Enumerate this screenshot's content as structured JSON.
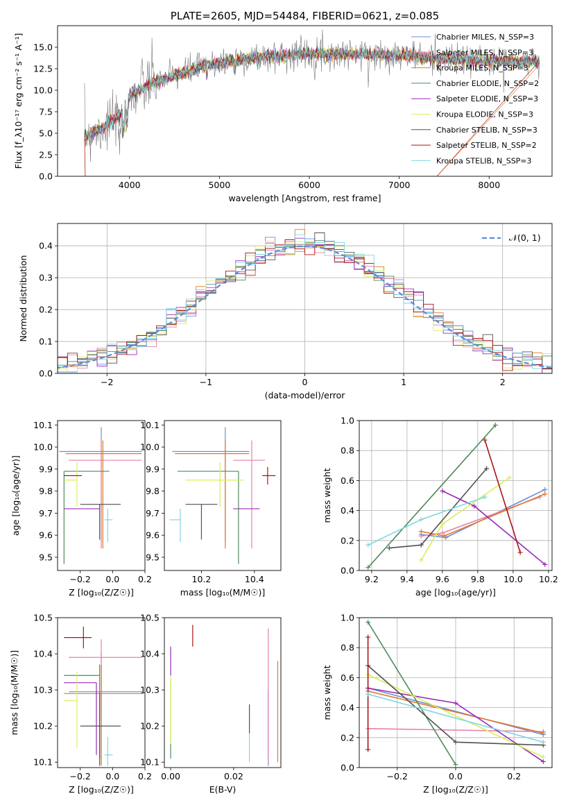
{
  "colors": {
    "Chabrier MILES": "#6a8fd8",
    "Salpeter MILES": "#e87fa8",
    "Kroupa MILES": "#e07a2a",
    "Chabrier ELODIE": "#4e8a5a",
    "Salpeter ELODIE": "#9a2ab8",
    "Kroupa ELODIE": "#d8ef5a",
    "Chabrier STELIB": "#505050",
    "Salpeter STELIB": "#a81414",
    "Kroupa STELIB": "#7fd6e6",
    "normal": "#5b8ad9",
    "data": "#777777"
  },
  "chart_data": [
    {
      "id": "spectrum",
      "type": "line",
      "title": "PLATE=2605, MJD=54484, FIBERID=0621, z=0.085",
      "xlabel": "wavelength [Angstrom, rest frame]",
      "ylabel": "Flux [f_λ10⁻¹⁷ erg cm⁻² s⁻¹ A⁻¹]",
      "xlim": [
        3200,
        8700
      ],
      "ylim": [
        0,
        17.5
      ],
      "xticks": [
        4000,
        5000,
        6000,
        7000,
        8000
      ],
      "yticks": [
        0.0,
        2.5,
        5.0,
        7.5,
        10.0,
        12.5,
        15.0
      ],
      "continuum": [
        [
          3500,
          4.6
        ],
        [
          3700,
          5.6
        ],
        [
          3900,
          7.2
        ],
        [
          4000,
          9.2
        ],
        [
          4200,
          10.6
        ],
        [
          4500,
          11.7
        ],
        [
          4800,
          12.7
        ],
        [
          5200,
          13.5
        ],
        [
          5600,
          14.0
        ],
        [
          6000,
          14.3
        ],
        [
          6500,
          14.2
        ],
        [
          7000,
          14.1
        ],
        [
          7500,
          13.6
        ],
        [
          8000,
          13.4
        ],
        [
          8500,
          13.3
        ]
      ],
      "legend": [
        "Chabrier MILES, N_SSP=3",
        "Salpeter MILES, N_SSP=3",
        "Kroupa MILES, N_SSP=3",
        "Chabrier ELODIE, N_SSP=2",
        "Salpeter ELODIE, N_SSP=3",
        "Kroupa ELODIE, N_SSP=3",
        "Chabrier STELIB, N_SSP=3",
        "Salpeter STELIB, N_SSP=2",
        "Kroupa STELIB, N_SSP=3"
      ],
      "legend_loc": "right"
    },
    {
      "id": "residuals",
      "type": "histogram",
      "xlabel": "(data-model)/error",
      "ylabel": "Normed distribution",
      "xlim": [
        -2.5,
        2.5
      ],
      "ylim": [
        0,
        0.47
      ],
      "xticks": [
        -2,
        -1,
        0,
        1,
        2
      ],
      "yticks": [
        0.0,
        0.1,
        0.2,
        0.3,
        0.4
      ],
      "bin_width": 0.1,
      "grid": true,
      "legend": [
        "𝒩(0, 1)"
      ],
      "legend_loc": "top-right"
    },
    {
      "id": "age_vs_Z",
      "type": "errorbar",
      "xlabel": "Z [log₁₀(Z/Z☉)]",
      "ylabel": "age  [log₁₀(age/yr)]",
      "xlim": [
        -0.34,
        0.2
      ],
      "ylim": [
        9.44,
        10.12
      ],
      "xticks": [
        -0.2,
        0.0,
        0.2
      ],
      "yticks": [
        9.5,
        9.6,
        9.7,
        9.8,
        9.9,
        10.0,
        10.1
      ],
      "points": [
        {
          "model": "Chabrier MILES",
          "x": -0.07,
          "y": 9.98,
          "xerr": [
            0.26,
            0.25
          ],
          "yerr": [
            0.41,
            0.11
          ]
        },
        {
          "model": "Salpeter MILES",
          "x": -0.07,
          "y": 9.94,
          "xerr": [
            0.2,
            0.25
          ],
          "yerr": [
            0.4,
            0.09
          ]
        },
        {
          "model": "Kroupa MILES",
          "x": -0.06,
          "y": 9.97,
          "xerr": [
            0.23,
            0.24
          ],
          "yerr": [
            0.43,
            0.06
          ]
        },
        {
          "model": "Chabrier ELODIE",
          "x": -0.3,
          "y": 9.89,
          "xerr": [
            0.0,
            0.28
          ],
          "yerr": [
            0.42,
            0.0
          ]
        },
        {
          "model": "Salpeter ELODIE",
          "x": -0.1,
          "y": 9.72,
          "xerr": [
            0.2,
            0.02
          ],
          "yerr": [
            0.0,
            0.0
          ]
        },
        {
          "model": "Kroupa ELODIE",
          "x": -0.22,
          "y": 9.85,
          "xerr": [
            0.08,
            0.0
          ],
          "yerr": [
            0.12,
            0.08
          ]
        },
        {
          "model": "Chabrier STELIB",
          "x": -0.08,
          "y": 9.74,
          "xerr": [
            0.12,
            0.13
          ],
          "yerr": [
            0.16,
            0.0
          ]
        },
        {
          "model": "Salpeter STELIB",
          "x": -0.22,
          "y": 9.87,
          "xerr": [
            0.08,
            0.03
          ],
          "yerr": [
            0.0,
            0.0
          ]
        },
        {
          "model": "Kroupa STELIB",
          "x": -0.03,
          "y": 9.67,
          "xerr": [
            0.02,
            0.03
          ],
          "yerr": [
            0.1,
            0.05
          ]
        }
      ]
    },
    {
      "id": "age_vs_mass",
      "type": "errorbar",
      "xlabel": "mass [log₁₀(M/M☉)]",
      "ylabel": "",
      "xlim": [
        10.06,
        10.5
      ],
      "ylim": [
        9.44,
        10.12
      ],
      "xticks": [
        10.2,
        10.4
      ],
      "yticks": [
        9.5,
        9.6,
        9.7,
        9.8,
        9.9,
        10.0,
        10.1
      ],
      "points": [
        {
          "model": "Chabrier MILES",
          "x": 10.29,
          "y": 9.98,
          "xerr": [
            0.2,
            0.09
          ],
          "yerr": [
            0.41,
            0.11
          ]
        },
        {
          "model": "Salpeter MILES",
          "x": 10.39,
          "y": 9.94,
          "xerr": [
            0.07,
            0.05
          ],
          "yerr": [
            0.4,
            0.09
          ]
        },
        {
          "model": "Kroupa MILES",
          "x": 10.29,
          "y": 9.97,
          "xerr": [
            0.19,
            0.09
          ],
          "yerr": [
            0.43,
            0.06
          ]
        },
        {
          "model": "Chabrier ELODIE",
          "x": 10.34,
          "y": 9.89,
          "xerr": [
            0.23,
            0.0
          ],
          "yerr": [
            0.42,
            0.0
          ]
        },
        {
          "model": "Salpeter ELODIE",
          "x": 10.32,
          "y": 9.72,
          "xerr": [
            0.0,
            0.1
          ],
          "yerr": [
            0.0,
            0.0
          ]
        },
        {
          "model": "Kroupa ELODIE",
          "x": 10.27,
          "y": 9.85,
          "xerr": [
            0.13,
            0.09
          ],
          "yerr": [
            0.12,
            0.08
          ]
        },
        {
          "model": "Chabrier STELIB",
          "x": 10.2,
          "y": 9.74,
          "xerr": [
            0.06,
            0.06
          ],
          "yerr": [
            0.16,
            0.0
          ]
        },
        {
          "model": "Salpeter STELIB",
          "x": 10.45,
          "y": 9.87,
          "xerr": [
            0.02,
            0.03
          ],
          "yerr": [
            0.04,
            0.04
          ]
        },
        {
          "model": "Kroupa STELIB",
          "x": 10.12,
          "y": 9.67,
          "xerr": [
            0.04,
            0.0
          ],
          "yerr": [
            0.1,
            0.05
          ]
        }
      ]
    },
    {
      "id": "weight_vs_age",
      "type": "line",
      "xlabel": "age  [log₁₀(age/yr)]",
      "ylabel": "mass weight",
      "xlim": [
        9.13,
        10.22
      ],
      "ylim": [
        0,
        1
      ],
      "xticks": [
        9.2,
        9.4,
        9.6,
        9.8,
        10.0,
        10.2
      ],
      "yticks": [
        0.0,
        0.2,
        0.4,
        0.6,
        0.8,
        1.0
      ],
      "grid": true,
      "series": [
        {
          "model": "Chabrier MILES",
          "x": [
            9.48,
            9.62,
            10.18
          ],
          "y": [
            0.24,
            0.22,
            0.54
          ]
        },
        {
          "model": "Salpeter MILES",
          "x": [
            9.48,
            9.6,
            10.15
          ],
          "y": [
            0.23,
            0.25,
            0.49
          ]
        },
        {
          "model": "Kroupa MILES",
          "x": [
            9.48,
            9.61,
            10.18
          ],
          "y": [
            0.26,
            0.23,
            0.51
          ]
        },
        {
          "model": "Chabrier ELODIE",
          "x": [
            9.18,
            9.9
          ],
          "y": [
            0.02,
            0.97
          ]
        },
        {
          "model": "Salpeter ELODIE",
          "x": [
            9.6,
            9.78,
            10.18
          ],
          "y": [
            0.53,
            0.43,
            0.04
          ]
        },
        {
          "model": "Kroupa ELODIE",
          "x": [
            9.48,
            9.6,
            9.98
          ],
          "y": [
            0.07,
            0.31,
            0.62
          ]
        },
        {
          "model": "Chabrier STELIB",
          "x": [
            9.3,
            9.48,
            9.85
          ],
          "y": [
            0.15,
            0.17,
            0.68
          ]
        },
        {
          "model": "Salpeter STELIB",
          "x": [
            9.84,
            10.04
          ],
          "y": [
            0.87,
            0.12
          ]
        },
        {
          "model": "Kroupa STELIB",
          "x": [
            9.18,
            9.48,
            9.84
          ],
          "y": [
            0.17,
            0.34,
            0.49
          ]
        }
      ]
    },
    {
      "id": "mass_vs_Z",
      "type": "errorbar",
      "xlabel": "Z [log₁₀(Z/Z☉)]",
      "ylabel": "mass [log₁₀(M/M☉)]",
      "xlim": [
        -0.34,
        0.2
      ],
      "ylim": [
        10.085,
        10.5
      ],
      "xticks": [
        -0.2,
        0.0,
        0.2
      ],
      "yticks": [
        10.1,
        10.2,
        10.3,
        10.4,
        10.5
      ],
      "points": [
        {
          "model": "Chabrier MILES",
          "x": -0.07,
          "y": 10.295,
          "xerr": [
            0.2,
            0.25
          ],
          "yerr": [
            0.2,
            0.11
          ]
        },
        {
          "model": "Salpeter MILES",
          "x": -0.07,
          "y": 10.39,
          "xerr": [
            0.2,
            0.25
          ],
          "yerr": [
            0.17,
            0.05
          ]
        },
        {
          "model": "Kroupa MILES",
          "x": -0.07,
          "y": 10.29,
          "xerr": [
            0.23,
            0.26
          ],
          "yerr": [
            0.2,
            0.08
          ]
        },
        {
          "model": "Chabrier ELODIE",
          "x": -0.08,
          "y": 10.34,
          "xerr": [
            0.22,
            0.0
          ],
          "yerr": [
            0.23,
            0.03
          ]
        },
        {
          "model": "Salpeter ELODIE",
          "x": -0.1,
          "y": 10.32,
          "xerr": [
            0.2,
            0.0
          ],
          "yerr": [
            0.2,
            0.0
          ]
        },
        {
          "model": "Kroupa ELODIE",
          "x": -0.22,
          "y": 10.27,
          "xerr": [
            0.08,
            0.0
          ],
          "yerr": [
            0.13,
            0.08
          ]
        },
        {
          "model": "Chabrier STELIB",
          "x": -0.08,
          "y": 10.2,
          "xerr": [
            0.12,
            0.13
          ],
          "yerr": [
            0.11,
            0.09
          ]
        },
        {
          "model": "Salpeter STELIB",
          "x": -0.18,
          "y": 10.445,
          "xerr": [
            0.12,
            0.05
          ],
          "yerr": [
            0.03,
            0.03
          ]
        },
        {
          "model": "Kroupa STELIB",
          "x": -0.03,
          "y": 10.12,
          "xerr": [
            0.02,
            0.03
          ],
          "yerr": [
            0.03,
            0.05
          ]
        }
      ]
    },
    {
      "id": "mass_vs_EBV",
      "type": "errorbar",
      "xlabel": "E(B-V)",
      "ylabel": "",
      "xlim": [
        -0.002,
        0.035
      ],
      "ylim": [
        10.085,
        10.5
      ],
      "xticks": [
        0.0,
        0.02
      ],
      "yticks": [
        10.1,
        10.2,
        10.3,
        10.4,
        10.5
      ],
      "points": [
        {
          "model": "Chabrier MILES",
          "x": 0.031,
          "y": 10.2,
          "xerr": [
            0,
            0
          ],
          "yerr": [
            0.11,
            0.1
          ]
        },
        {
          "model": "Salpeter MILES",
          "x": 0.031,
          "y": 10.3,
          "xerr": [
            0,
            0
          ],
          "yerr": [
            0.2,
            0.17
          ]
        },
        {
          "model": "Kroupa MILES",
          "x": 0.034,
          "y": 10.24,
          "xerr": [
            0,
            0
          ],
          "yerr": [
            0.14,
            0.14
          ]
        },
        {
          "model": "Chabrier ELODIE",
          "x": 0.0,
          "y": 10.22,
          "xerr": [
            0,
            0
          ],
          "yerr": [
            0.11,
            0.11
          ]
        },
        {
          "model": "Salpeter ELODIE",
          "x": 0.0,
          "y": 10.38,
          "xerr": [
            0,
            0
          ],
          "yerr": [
            0.04,
            0.04
          ]
        },
        {
          "model": "Kroupa ELODIE",
          "x": 0.0,
          "y": 10.25,
          "xerr": [
            0,
            0
          ],
          "yerr": [
            0.1,
            0.09
          ]
        },
        {
          "model": "Chabrier STELIB",
          "x": 0.025,
          "y": 10.2,
          "xerr": [
            0,
            0
          ],
          "yerr": [
            0.02,
            0.06
          ]
        },
        {
          "model": "Salpeter STELIB",
          "x": 0.007,
          "y": 10.45,
          "xerr": [
            0,
            0
          ],
          "yerr": [
            0.03,
            0.03
          ]
        },
        {
          "model": "Kroupa STELIB",
          "x": 0.025,
          "y": 10.14,
          "xerr": [
            0,
            0
          ],
          "yerr": [
            0.04,
            0.04
          ]
        }
      ]
    },
    {
      "id": "weight_vs_Z",
      "type": "line",
      "xlabel": "Z [log₁₀(Z/Z☉)]",
      "ylabel": "mass weight",
      "xlim": [
        -0.33,
        0.33
      ],
      "ylim": [
        0,
        1
      ],
      "xticks": [
        -0.2,
        0.0,
        0.2
      ],
      "yticks": [
        0.0,
        0.2,
        0.4,
        0.6,
        0.8,
        1.0
      ],
      "grid": true,
      "series": [
        {
          "model": "Chabrier MILES",
          "x": [
            -0.3,
            0.3
          ],
          "y": [
            0.53,
            0.22
          ]
        },
        {
          "model": "Salpeter MILES",
          "x": [
            -0.3,
            0.3
          ],
          "y": [
            0.26,
            0.24
          ]
        },
        {
          "model": "Kroupa MILES",
          "x": [
            -0.3,
            0.3
          ],
          "y": [
            0.51,
            0.23
          ]
        },
        {
          "model": "Chabrier ELODIE",
          "x": [
            -0.3,
            0.0
          ],
          "y": [
            0.97,
            0.02
          ]
        },
        {
          "model": "Salpeter ELODIE",
          "x": [
            -0.3,
            0.0,
            0.3
          ],
          "y": [
            0.53,
            0.43,
            0.04
          ]
        },
        {
          "model": "Kroupa ELODIE",
          "x": [
            -0.3,
            0.3
          ],
          "y": [
            0.62,
            0.07
          ]
        },
        {
          "model": "Chabrier STELIB",
          "x": [
            -0.3,
            0.0,
            0.3
          ],
          "y": [
            0.68,
            0.17,
            0.15
          ]
        },
        {
          "model": "Salpeter STELIB",
          "x": [
            -0.3,
            -0.3
          ],
          "y": [
            0.87,
            0.12
          ]
        },
        {
          "model": "Kroupa STELIB",
          "x": [
            -0.3,
            0.3
          ],
          "y": [
            0.49,
            0.17
          ]
        }
      ]
    }
  ]
}
